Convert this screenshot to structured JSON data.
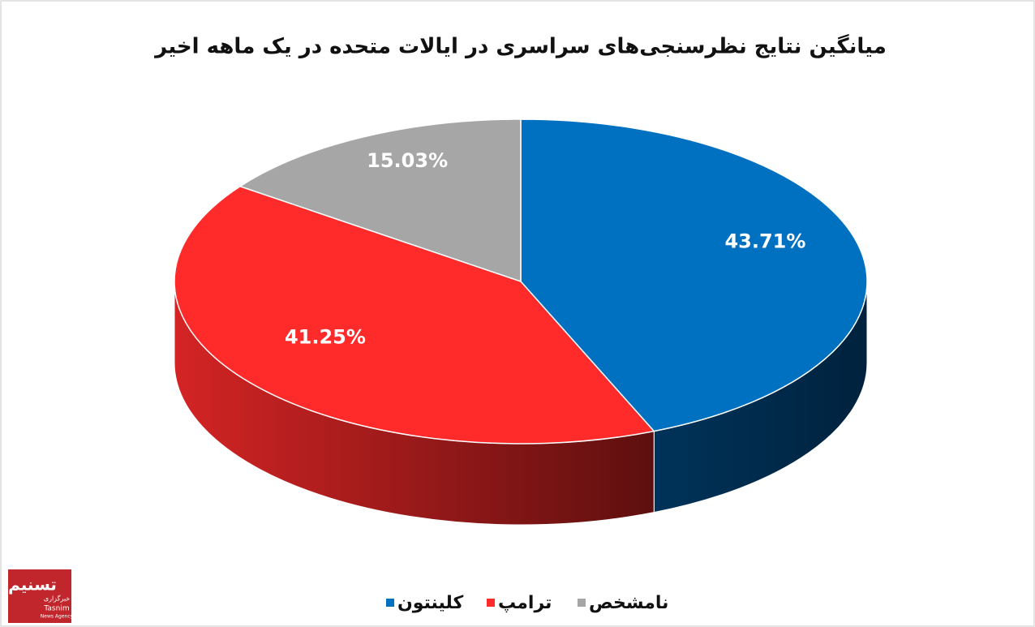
{
  "chart_data": {
    "type": "pie3d",
    "title": "میانگین نتایج نظرسنجی‌های سراسری در ایالات متحده در یک ماهه اخیر",
    "categories": [
      "کلینتون",
      "ترامپ",
      "نامشخص"
    ],
    "values": [
      43.71,
      41.25,
      15.03
    ],
    "value_labels": [
      "43.71%",
      "41.25%",
      "15.03%"
    ],
    "colors": [
      "#0070c0",
      "#ff2b2b",
      "#a6a6a6"
    ],
    "legend": "bottom"
  },
  "logo": {
    "name": "تسنیم",
    "agency": "خبرگزاری",
    "latin": "Tasnim",
    "sub": "News Agency"
  }
}
